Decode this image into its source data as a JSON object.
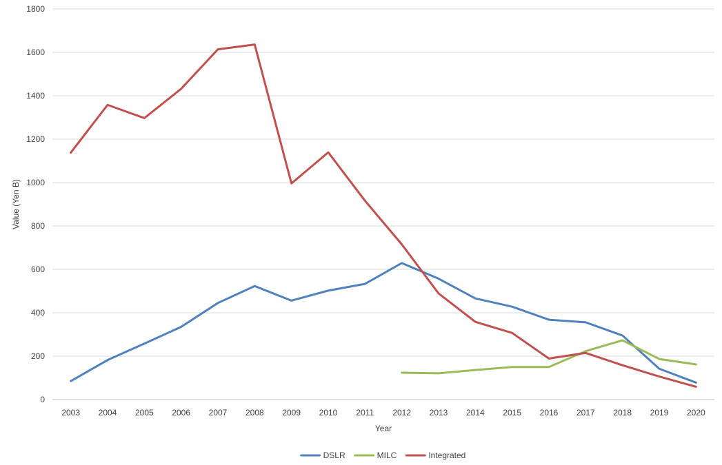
{
  "chart_data": {
    "type": "line",
    "title": "",
    "xlabel": "Year",
    "ylabel": "Value (Yen B)",
    "x": [
      "2003",
      "2004",
      "2005",
      "2006",
      "2007",
      "2008",
      "2009",
      "2010",
      "2011",
      "2012",
      "2013",
      "2014",
      "2015",
      "2016",
      "2017",
      "2018",
      "2019",
      "2020"
    ],
    "ylim": [
      0,
      1800
    ],
    "yticks": [
      0,
      200,
      400,
      600,
      800,
      1000,
      1200,
      1400,
      1600,
      1800
    ],
    "grid": true,
    "legend_position": "bottom",
    "series": [
      {
        "name": "DSLR",
        "color": "#4F81BD",
        "values": [
          85,
          182,
          258,
          335,
          445,
          523,
          456,
          502,
          533,
          629,
          557,
          466,
          428,
          368,
          356,
          295,
          142,
          78
        ]
      },
      {
        "name": "MILC",
        "color": "#9BBB59",
        "values": [
          null,
          null,
          null,
          null,
          null,
          null,
          null,
          null,
          null,
          124,
          121,
          136,
          150,
          150,
          223,
          273,
          187,
          162
        ]
      },
      {
        "name": "Integrated",
        "color": "#C0504D",
        "values": [
          1138,
          1358,
          1297,
          1432,
          1614,
          1636,
          996,
          1139,
          916,
          715,
          489,
          358,
          307,
          189,
          215,
          158,
          106,
          59
        ]
      }
    ]
  }
}
